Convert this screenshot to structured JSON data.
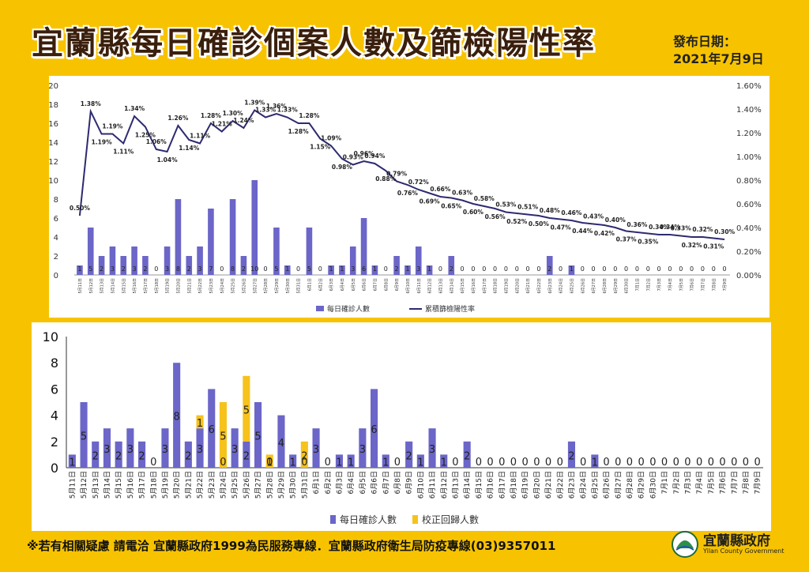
{
  "title": "宜蘭縣每日確診個案人數及篩檢陽性率",
  "date_label": "發布日期：",
  "date_value": "2021年7月9日",
  "footer": "※若有相關疑慮 請電洽  宜蘭縣政府1999為民服務專線．宜蘭縣政府衛生局防疫專線(03)9357011",
  "logo": {
    "name": "宜蘭縣政府",
    "sub": "Yilan County Government"
  },
  "colors": {
    "bar": "#6b66c8",
    "line": "#2d2a70",
    "corrected": "#f6c21c",
    "background": "#f7c300"
  },
  "chart_data": [
    {
      "type": "bar+line",
      "categories": [
        "5月11日",
        "5月12日",
        "5月13日",
        "5月14日",
        "5月15日",
        "5月16日",
        "5月17日",
        "5月18日",
        "5月19日",
        "5月20日",
        "5月21日",
        "5月22日",
        "5月23日",
        "5月24日",
        "5月25日",
        "5月26日",
        "5月27日",
        "5月28日",
        "5月29日",
        "5月30日",
        "5月31日",
        "6月1日",
        "6月2日",
        "6月3日",
        "6月4日",
        "6月5日",
        "6月6日",
        "6月7日",
        "6月8日",
        "6月9日",
        "6月10日",
        "6月11日",
        "6月12日",
        "6月13日",
        "6月14日",
        "6月15日",
        "6月16日",
        "6月17日",
        "6月18日",
        "6月19日",
        "6月20日",
        "6月21日",
        "6月22日",
        "6月23日",
        "6月24日",
        "6月25日",
        "6月26日",
        "6月27日",
        "6月28日",
        "6月29日",
        "6月30日",
        "7月1日",
        "7月2日",
        "7月3日",
        "7月4日",
        "7月5日",
        "7月6日",
        "7月7日",
        "7月8日",
        "7月9日"
      ],
      "series": [
        {
          "name": "每日確診人數",
          "axis": "left",
          "values": [
            1,
            5,
            2,
            3,
            2,
            3,
            2,
            0,
            3,
            8,
            2,
            3,
            7,
            0,
            8,
            2,
            10,
            0,
            5,
            1,
            0,
            5,
            0,
            1,
            1,
            3,
            6,
            1,
            0,
            2,
            1,
            3,
            1,
            0,
            2,
            0,
            0,
            0,
            0,
            0,
            0,
            0,
            0,
            2,
            0,
            1,
            0,
            0,
            0,
            0,
            0,
            0,
            0,
            0,
            0,
            0,
            0,
            0,
            0,
            0
          ]
        },
        {
          "name": "累積篩檢陽性率",
          "axis": "right",
          "values": [
            0.5,
            1.38,
            1.19,
            1.19,
            1.11,
            1.34,
            1.25,
            1.06,
            1.04,
            1.26,
            1.14,
            1.11,
            1.28,
            1.21,
            1.3,
            1.24,
            1.39,
            1.33,
            1.36,
            1.33,
            1.28,
            1.28,
            1.15,
            1.09,
            0.98,
            0.93,
            0.96,
            0.94,
            0.88,
            0.79,
            0.76,
            0.72,
            0.69,
            0.66,
            0.65,
            0.63,
            0.6,
            0.58,
            0.56,
            0.53,
            0.52,
            0.51,
            0.5,
            0.48,
            0.47,
            0.46,
            0.44,
            0.43,
            0.42,
            0.4,
            0.37,
            0.36,
            0.35,
            0.34,
            0.34,
            0.33,
            0.32,
            0.32,
            0.31,
            0.3
          ]
        }
      ],
      "left_ylim": [
        0,
        20
      ],
      "left_ticks": [
        0,
        2,
        4,
        6,
        8,
        10,
        12,
        14,
        16,
        18,
        20
      ],
      "right_ylim": [
        0,
        1.6
      ],
      "right_ticks": [
        "0.00%",
        "0.20%",
        "0.40%",
        "0.60%",
        "0.80%",
        "1.00%",
        "1.20%",
        "1.40%",
        "1.60%"
      ],
      "legend": [
        "每日確診人數",
        "累積篩檢陽性率"
      ],
      "legend_position": "bottom"
    },
    {
      "type": "stacked-bar",
      "categories": [
        "5月11日",
        "5月12日",
        "5月13日",
        "5月14日",
        "5月15日",
        "5月16日",
        "5月17日",
        "5月18日",
        "5月19日",
        "5月20日",
        "5月21日",
        "5月22日",
        "5月23日",
        "5月24日",
        "5月25日",
        "5月26日",
        "5月27日",
        "5月28日",
        "5月29日",
        "5月30日",
        "5月31日",
        "6月1日",
        "6月2日",
        "6月3日",
        "6月4日",
        "6月5日",
        "6月6日",
        "6月7日",
        "6月8日",
        "6月9日",
        "6月10日",
        "6月11日",
        "6月12日",
        "6月13日",
        "6月14日",
        "6月15日",
        "6月16日",
        "6月17日",
        "6月18日",
        "6月19日",
        "6月20日",
        "6月21日",
        "6月22日",
        "6月23日",
        "6月24日",
        "6月25日",
        "6月26日",
        "6月27日",
        "6月28日",
        "6月29日",
        "6月30日",
        "7月1日",
        "7月2日",
        "7月3日",
        "7月4日",
        "7月5日",
        "7月6日",
        "7月7日",
        "7月8日",
        "7月9日"
      ],
      "series": [
        {
          "name": "每日確診人數",
          "values": [
            1,
            5,
            2,
            3,
            2,
            3,
            2,
            0,
            3,
            8,
            2,
            3,
            6,
            0,
            3,
            2,
            5,
            0,
            4,
            1,
            0,
            3,
            0,
            1,
            1,
            3,
            6,
            1,
            0,
            2,
            1,
            3,
            1,
            0,
            2,
            0,
            0,
            0,
            0,
            0,
            0,
            0,
            0,
            2,
            0,
            1,
            0,
            0,
            0,
            0,
            0,
            0,
            0,
            0,
            0,
            0,
            0,
            0,
            0,
            0
          ]
        },
        {
          "name": "校正回歸人數",
          "values": [
            0,
            0,
            0,
            0,
            0,
            0,
            0,
            0,
            0,
            0,
            0,
            1,
            0,
            5,
            0,
            5,
            0,
            1,
            0,
            0,
            2,
            0,
            0,
            0,
            0,
            0,
            0,
            0,
            0,
            0,
            0,
            0,
            0,
            0,
            0,
            0,
            0,
            0,
            0,
            0,
            0,
            0,
            0,
            0,
            0,
            0,
            0,
            0,
            0,
            0,
            0,
            0,
            0,
            0,
            0,
            0,
            0,
            0,
            0,
            0
          ]
        }
      ],
      "ylim": [
        0,
        10
      ],
      "ticks": [
        0,
        2,
        4,
        6,
        8,
        10
      ],
      "legend": [
        "每日確診人數",
        "校正回歸人數"
      ],
      "legend_position": "bottom"
    }
  ]
}
